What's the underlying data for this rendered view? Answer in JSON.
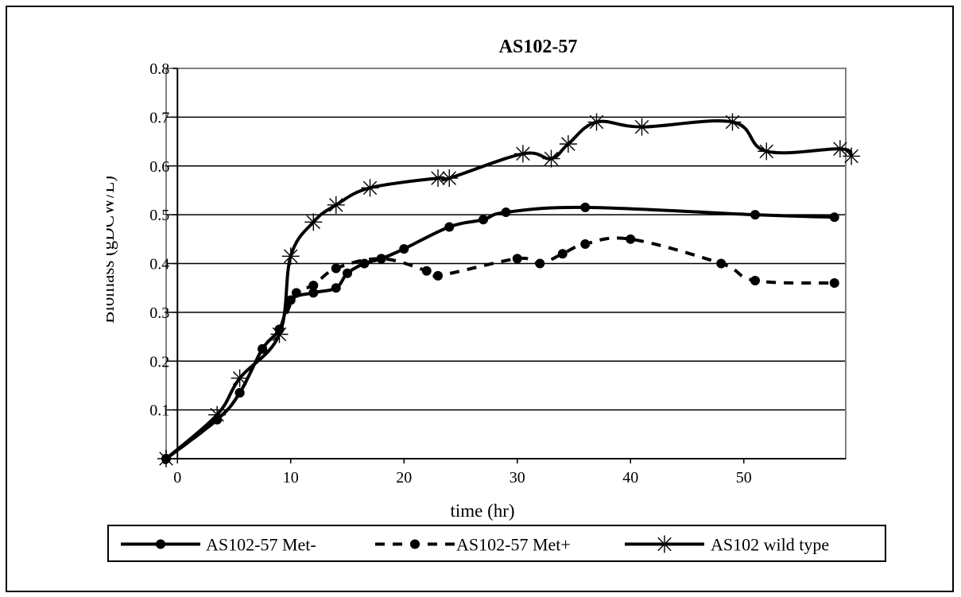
{
  "chart_data": {
    "type": "line",
    "title": "AS102-57",
    "xlabel": "time (hr)",
    "ylabel": "Biomass (gDCW/L)",
    "xlim": [
      -1,
      59
    ],
    "ylim": [
      0,
      0.8
    ],
    "xticks": [
      0,
      10,
      20,
      30,
      40,
      50
    ],
    "yticks": [
      0,
      0.1,
      0.2,
      0.3,
      0.4,
      0.5,
      0.6,
      0.7,
      0.8
    ],
    "xtick_labels": [
      "0",
      "10",
      "20",
      "30",
      "40",
      "50"
    ],
    "ytick_labels": [
      "0",
      "0.1",
      "0.2",
      "0.3",
      "0.4",
      "0.5",
      "0.6",
      "0.7",
      "0.8"
    ],
    "grid": "horizontal",
    "legend_position": "bottom",
    "series": [
      {
        "name": "AS102-57 Met-",
        "line_style": "solid",
        "marker": "circle",
        "color": "#000000",
        "points": [
          [
            -1,
            0.0
          ],
          [
            3.5,
            0.08
          ],
          [
            5.5,
            0.135
          ],
          [
            7.5,
            0.225
          ],
          [
            9,
            0.265
          ],
          [
            10,
            0.325
          ],
          [
            12,
            0.34
          ],
          [
            14,
            0.35
          ],
          [
            15,
            0.38
          ],
          [
            16.5,
            0.4
          ],
          [
            18,
            0.41
          ],
          [
            20,
            0.43
          ],
          [
            24,
            0.475
          ],
          [
            27,
            0.49
          ],
          [
            29,
            0.505
          ],
          [
            36,
            0.515
          ],
          [
            51,
            0.5
          ],
          [
            58,
            0.495
          ]
        ]
      },
      {
        "name": "AS102-57 Met+",
        "line_style": "dashed",
        "marker": "circle",
        "color": "#000000",
        "points": [
          [
            -1,
            0.0
          ],
          [
            3.5,
            0.08
          ],
          [
            5.5,
            0.135
          ],
          [
            7.5,
            0.225
          ],
          [
            9,
            0.265
          ],
          [
            10.5,
            0.34
          ],
          [
            12,
            0.355
          ],
          [
            14,
            0.39
          ],
          [
            18,
            0.41
          ],
          [
            22,
            0.385
          ],
          [
            23,
            0.375
          ],
          [
            30,
            0.41
          ],
          [
            32,
            0.4
          ],
          [
            34,
            0.42
          ],
          [
            36,
            0.44
          ],
          [
            40,
            0.45
          ],
          [
            48,
            0.4
          ],
          [
            51,
            0.365
          ],
          [
            58,
            0.36
          ]
        ]
      },
      {
        "name": "AS102 wild type",
        "line_style": "solid",
        "marker": "asterisk",
        "color": "#000000",
        "points": [
          [
            -1,
            0.0
          ],
          [
            3.5,
            0.09
          ],
          [
            5.5,
            0.165
          ],
          [
            9,
            0.255
          ],
          [
            10,
            0.415
          ],
          [
            12,
            0.485
          ],
          [
            14,
            0.52
          ],
          [
            17,
            0.555
          ],
          [
            23,
            0.575
          ],
          [
            24,
            0.575
          ],
          [
            30.5,
            0.625
          ],
          [
            33,
            0.615
          ],
          [
            34.5,
            0.645
          ],
          [
            37,
            0.69
          ],
          [
            41,
            0.68
          ],
          [
            49,
            0.69
          ],
          [
            52,
            0.63
          ],
          [
            58.5,
            0.635
          ],
          [
            59.5,
            0.62
          ]
        ]
      }
    ]
  }
}
